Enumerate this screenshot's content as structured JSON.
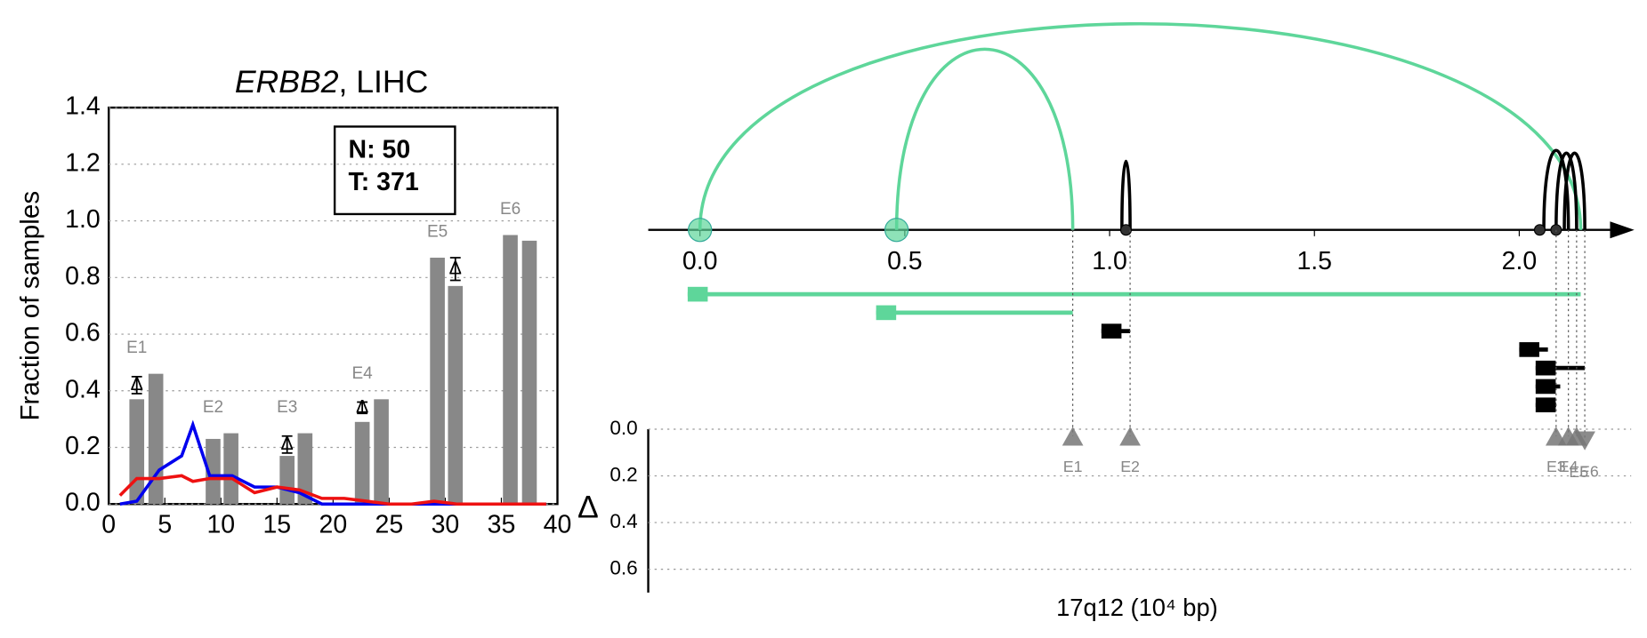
{
  "chart_data": [
    {
      "type": "bar",
      "title_parts": [
        "ERBB2",
        ", LIHC"
      ],
      "ylabel": "Fraction of samples",
      "xlim": [
        0,
        40
      ],
      "xticks": [
        0,
        5,
        10,
        15,
        20,
        25,
        30,
        35,
        40
      ],
      "ylim": [
        0,
        1.4
      ],
      "yticks": [
        {
          "value": 0,
          "label": "0.0"
        },
        {
          "value": 0.2,
          "label": "0.2"
        },
        {
          "value": 0.4,
          "label": "0.4"
        },
        {
          "value": 0.6,
          "label": "0.6"
        },
        {
          "value": 0.8,
          "label": "0.8"
        },
        {
          "value": 1.0,
          "label": "1.0"
        },
        {
          "value": 1.2,
          "label": "1.2"
        },
        {
          "value": 1.4,
          "label": "1.4"
        }
      ],
      "grid": true,
      "annotation": [
        "N: 50",
        "T: 371"
      ],
      "exon_labels": [
        "E1",
        "E2",
        "E3",
        "E4",
        "E5",
        "E6"
      ],
      "bars": [
        {
          "color": "#888888",
          "x": [
            2.5,
            9.3,
            15.9,
            22.6,
            29.3,
            35.8
          ],
          "values": [
            0.37,
            0.23,
            0.17,
            0.29,
            0.87,
            0.95
          ]
        },
        {
          "color": "#888888",
          "x": [
            4.2,
            10.9,
            17.5,
            24.3,
            30.9,
            37.5
          ],
          "values": [
            0.46,
            0.25,
            0.25,
            0.37,
            0.77,
            0.93
          ]
        }
      ],
      "lines": [
        {
          "color": "#0000ee",
          "x": [
            1,
            2.5,
            4.5,
            6.5,
            7.5,
            9,
            11,
            13,
            15,
            17,
            19,
            21,
            23,
            25,
            27,
            29,
            31,
            33,
            35,
            37,
            39
          ],
          "values": [
            0,
            0.01,
            0.12,
            0.17,
            0.28,
            0.1,
            0.1,
            0.06,
            0.06,
            0.04,
            0,
            0,
            0,
            0,
            0,
            0,
            0,
            0,
            0,
            0,
            0
          ]
        },
        {
          "color": "#ee1111",
          "x": [
            1,
            2.5,
            4.5,
            6.5,
            7.5,
            9,
            11,
            13,
            15,
            17,
            19,
            21,
            23,
            25,
            27,
            29,
            31,
            33,
            35,
            37,
            39
          ],
          "values": [
            0.03,
            0.09,
            0.09,
            0.1,
            0.08,
            0.09,
            0.09,
            0.04,
            0.06,
            0.05,
            0.02,
            0.02,
            0.01,
            0,
            0,
            0.01,
            0,
            0,
            0,
            0,
            0
          ]
        }
      ],
      "delta": {
        "label": "Δ",
        "x": [
          2.5,
          15.9,
          22.6,
          30.9
        ],
        "values": [
          0.42,
          0.21,
          0.34,
          0.83
        ],
        "errors": [
          0.03,
          0.03,
          0.02,
          0.04
        ]
      }
    },
    {
      "type": "arc",
      "xlim": [
        -0.126,
        2.27
      ],
      "xticks": [
        {
          "value": 0,
          "label": "0.0"
        },
        {
          "value": 0.5,
          "label": "0.5"
        },
        {
          "value": 1.0,
          "label": "1.0"
        },
        {
          "value": 1.5,
          "label": "1.5"
        },
        {
          "value": 2.0,
          "label": "2.0"
        }
      ],
      "nodes": [
        {
          "x": 0,
          "color": "#5ed69a"
        },
        {
          "x": 0.48,
          "color": "#5ed69a"
        },
        {
          "x": 1.04,
          "color": "#333333"
        },
        {
          "x": 2.05,
          "color": "#333333"
        },
        {
          "x": 2.09,
          "color": "#333333"
        }
      ],
      "arcs": [
        {
          "start": 0,
          "end": 2.15,
          "color": "#5ed69a"
        },
        {
          "start": 0.48,
          "end": 0.91,
          "color": "#5ed69a"
        },
        {
          "start": 1.03,
          "end": 1.05,
          "color": "#000000"
        },
        {
          "start": 2.06,
          "end": 2.12,
          "color": "#000000"
        },
        {
          "start": 2.09,
          "end": 2.14,
          "color": "#000000"
        },
        {
          "start": 2.11,
          "end": 2.16,
          "color": "#000000"
        }
      ],
      "segments": [
        {
          "start": -0.03,
          "end": 2.15,
          "color": "#5ed69a"
        },
        {
          "start": 0.43,
          "end": 0.91,
          "color": "#5ed69a"
        },
        {
          "start": 0.98,
          "end": 1.05,
          "color": "#000000"
        },
        {
          "start": 2.0,
          "end": 2.07,
          "color": "#000000"
        },
        {
          "start": 2.04,
          "end": 2.16,
          "color": "#000000"
        },
        {
          "start": 2.04,
          "end": 2.1,
          "color": "#000000"
        },
        {
          "start": 2.04,
          "end": 2.09,
          "color": "#000000"
        }
      ],
      "ylabel": "Δ",
      "xlabel": "17q12 (10⁴ bp)",
      "ylim": [
        0,
        0.7
      ],
      "yticks": [
        {
          "value": 0,
          "label": "0.0"
        },
        {
          "value": 0.2,
          "label": "0.2"
        },
        {
          "value": 0.4,
          "label": "0.4"
        },
        {
          "value": 0.6,
          "label": "0.6"
        }
      ],
      "markers": {
        "labels": [
          "E1",
          "E2",
          "E3",
          "E4",
          "E5",
          "E6"
        ],
        "x": [
          0.91,
          1.05,
          2.09,
          2.12,
          2.14,
          2.16
        ],
        "values": [
          0.03,
          0.03,
          0.03,
          0.03,
          0.03,
          0.05
        ],
        "direction": [
          "up",
          "up",
          "up",
          "up",
          "up",
          "down"
        ],
        "color": "#777777"
      }
    }
  ]
}
